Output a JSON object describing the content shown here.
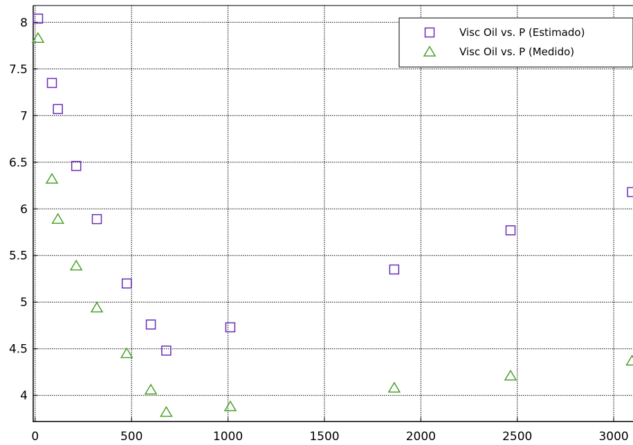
{
  "chart_data": {
    "type": "scatter",
    "title": "",
    "xlabel": "",
    "ylabel": "",
    "xlim": [
      -10,
      3100
    ],
    "ylim": [
      3.72,
      8.18
    ],
    "grid": true,
    "legend_placement": "top-right",
    "x_ticks": [
      0,
      500,
      1000,
      1500,
      2000,
      2500,
      3000
    ],
    "x_tick_labels": [
      "0",
      "500",
      "1000",
      "1500",
      "2000",
      "2500",
      "3000"
    ],
    "y_ticks": [
      4,
      4.5,
      5,
      5.5,
      6,
      6.5,
      7,
      7.5,
      8
    ],
    "y_tick_labels": [
      "4",
      "4.5",
      "5",
      "5.5",
      "6",
      "6.5",
      "7",
      "7.5",
      "8"
    ],
    "series": [
      {
        "name": "Visc Oil vs. P (Estimado)",
        "marker": "square",
        "color": "#6a2ab8",
        "x": [
          15,
          87,
          118,
          213,
          320,
          475,
          600,
          680,
          1012,
          1862,
          2465,
          3095
        ],
        "y": [
          8.04,
          7.35,
          7.07,
          6.46,
          5.89,
          5.2,
          4.76,
          4.48,
          4.73,
          5.35,
          5.77,
          6.18
        ]
      },
      {
        "name": "Visc Oil vs. P (Medido)",
        "marker": "triangle",
        "color": "#4aa02a",
        "x": [
          15,
          87,
          118,
          213,
          320,
          475,
          600,
          680,
          1012,
          1862,
          2465,
          3095
        ],
        "y": [
          7.83,
          6.32,
          5.89,
          5.39,
          4.94,
          4.45,
          4.06,
          3.82,
          3.88,
          4.08,
          4.21,
          4.37
        ]
      }
    ]
  }
}
